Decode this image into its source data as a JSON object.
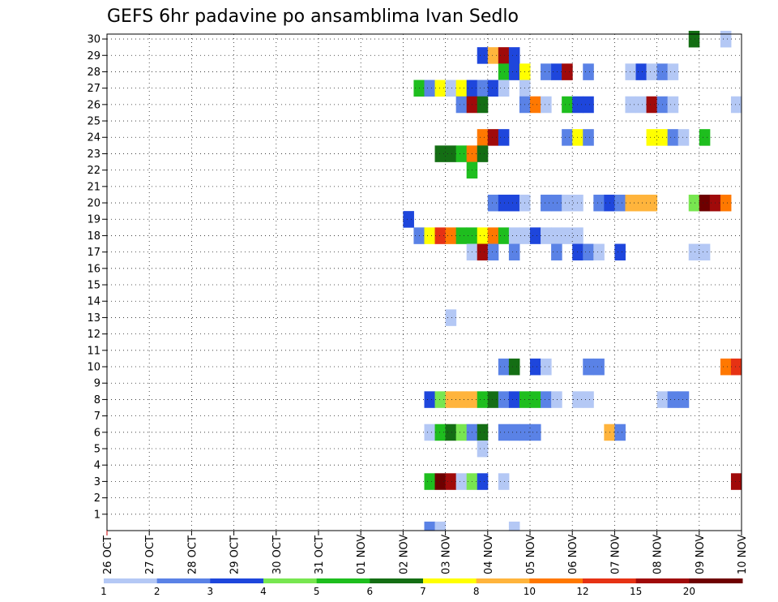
{
  "chart_data": {
    "type": "heatmap",
    "title": "GEFS 6hr padavine po ansamblima Ivan Sedlo",
    "x_tick_labels": [
      "26 OCT",
      "27 OCT",
      "28 OCT",
      "29 OCT",
      "30 OCT",
      "31 OCT",
      "01 NOV",
      "02 NOV",
      "03 NOV",
      "04 NOV",
      "05 NOV",
      "06 NOV",
      "07 NOV",
      "08 NOV",
      "09 NOV",
      "10 NOV"
    ],
    "y_tick_labels": [
      "1",
      "2",
      "3",
      "4",
      "5",
      "6",
      "7",
      "8",
      "9",
      "10",
      "11",
      "12",
      "13",
      "14",
      "15",
      "16",
      "17",
      "18",
      "19",
      "20",
      "21",
      "22",
      "23",
      "24",
      "25",
      "26",
      "27",
      "28",
      "29",
      "30"
    ],
    "y_range": [
      0,
      30
    ],
    "x_range_steps": [
      0,
      60
    ],
    "grid": true,
    "legend": {
      "position": "bottom",
      "labels": [
        "1",
        "2",
        "3",
        "4",
        "5",
        "6",
        "7",
        "8",
        "10",
        "12",
        "15",
        "20"
      ],
      "colors": [
        "#b4c8f5",
        "#5a82e6",
        "#1e46dc",
        "#78e650",
        "#1ebe1e",
        "#146e14",
        "#ffff00",
        "#ffb43c",
        "#ff7800",
        "#e63214",
        "#a00a0a",
        "#6e0000"
      ]
    },
    "cell_units": "6-hour steps after 26 OCT 00Z",
    "cells": [
      {
        "m": 30,
        "s": 56,
        "c": 6
      },
      {
        "m": 30,
        "s": 59,
        "c": 1
      },
      {
        "m": 29,
        "s": 36,
        "c": 3
      },
      {
        "m": 29,
        "s": 37,
        "c": 8
      },
      {
        "m": 29,
        "s": 38,
        "c": 11
      },
      {
        "m": 29,
        "s": 39,
        "c": 3
      },
      {
        "m": 28,
        "s": 38,
        "c": 5
      },
      {
        "m": 28,
        "s": 39,
        "c": 3
      },
      {
        "m": 28,
        "s": 40,
        "c": 7
      },
      {
        "m": 28,
        "s": 42,
        "c": 2
      },
      {
        "m": 28,
        "s": 43,
        "c": 3
      },
      {
        "m": 28,
        "s": 44,
        "c": 11
      },
      {
        "m": 28,
        "s": 46,
        "c": 2
      },
      {
        "m": 28,
        "s": 50,
        "c": 1
      },
      {
        "m": 28,
        "s": 51,
        "c": 3
      },
      {
        "m": 28,
        "s": 52,
        "c": 1
      },
      {
        "m": 28,
        "s": 53,
        "c": 2
      },
      {
        "m": 28,
        "s": 54,
        "c": 1
      },
      {
        "m": 27,
        "s": 30,
        "c": 5
      },
      {
        "m": 27,
        "s": 31,
        "c": 2
      },
      {
        "m": 27,
        "s": 32,
        "c": 7
      },
      {
        "m": 27,
        "s": 33,
        "c": 1
      },
      {
        "m": 27,
        "s": 34,
        "c": 7
      },
      {
        "m": 27,
        "s": 35,
        "c": 3
      },
      {
        "m": 27,
        "s": 36,
        "c": 2
      },
      {
        "m": 27,
        "s": 37,
        "c": 3
      },
      {
        "m": 27,
        "s": 38,
        "c": 1
      },
      {
        "m": 27,
        "s": 40,
        "c": 1
      },
      {
        "m": 26,
        "s": 34,
        "c": 2
      },
      {
        "m": 26,
        "s": 35,
        "c": 11
      },
      {
        "m": 26,
        "s": 36,
        "c": 6
      },
      {
        "m": 26,
        "s": 40,
        "c": 2
      },
      {
        "m": 26,
        "s": 41,
        "c": 9
      },
      {
        "m": 26,
        "s": 42,
        "c": 1
      },
      {
        "m": 26,
        "s": 44,
        "c": 5
      },
      {
        "m": 26,
        "s": 45,
        "c": 3
      },
      {
        "m": 26,
        "s": 46,
        "c": 3
      },
      {
        "m": 26,
        "s": 50,
        "c": 1
      },
      {
        "m": 26,
        "s": 51,
        "c": 1
      },
      {
        "m": 26,
        "s": 52,
        "c": 11
      },
      {
        "m": 26,
        "s": 53,
        "c": 2
      },
      {
        "m": 26,
        "s": 54,
        "c": 1
      },
      {
        "m": 26,
        "s": 60,
        "c": 1
      },
      {
        "m": 24,
        "s": 36,
        "c": 9
      },
      {
        "m": 24,
        "s": 37,
        "c": 11
      },
      {
        "m": 24,
        "s": 38,
        "c": 3
      },
      {
        "m": 24,
        "s": 44,
        "c": 2
      },
      {
        "m": 24,
        "s": 45,
        "c": 7
      },
      {
        "m": 24,
        "s": 46,
        "c": 2
      },
      {
        "m": 24,
        "s": 52,
        "c": 7
      },
      {
        "m": 24,
        "s": 53,
        "c": 7
      },
      {
        "m": 24,
        "s": 54,
        "c": 2
      },
      {
        "m": 24,
        "s": 55,
        "c": 1
      },
      {
        "m": 24,
        "s": 57,
        "c": 5
      },
      {
        "m": 23,
        "s": 32,
        "c": 6
      },
      {
        "m": 23,
        "s": 33,
        "c": 6
      },
      {
        "m": 23,
        "s": 34,
        "c": 5
      },
      {
        "m": 23,
        "s": 35,
        "c": 9
      },
      {
        "m": 23,
        "s": 36,
        "c": 6
      },
      {
        "m": 22,
        "s": 35,
        "c": 5
      },
      {
        "m": 20,
        "s": 37,
        "c": 2
      },
      {
        "m": 20,
        "s": 38,
        "c": 3
      },
      {
        "m": 20,
        "s": 39,
        "c": 3
      },
      {
        "m": 20,
        "s": 40,
        "c": 1
      },
      {
        "m": 20,
        "s": 42,
        "c": 2
      },
      {
        "m": 20,
        "s": 43,
        "c": 2
      },
      {
        "m": 20,
        "s": 44,
        "c": 1
      },
      {
        "m": 20,
        "s": 45,
        "c": 1
      },
      {
        "m": 20,
        "s": 47,
        "c": 2
      },
      {
        "m": 20,
        "s": 48,
        "c": 3
      },
      {
        "m": 20,
        "s": 49,
        "c": 2
      },
      {
        "m": 20,
        "s": 50,
        "c": 8
      },
      {
        "m": 20,
        "s": 51,
        "c": 8
      },
      {
        "m": 20,
        "s": 52,
        "c": 8
      },
      {
        "m": 20,
        "s": 56,
        "c": 4
      },
      {
        "m": 20,
        "s": 57,
        "c": 12
      },
      {
        "m": 20,
        "s": 58,
        "c": 11
      },
      {
        "m": 20,
        "s": 59,
        "c": 9
      },
      {
        "m": 19,
        "s": 29,
        "c": 3
      },
      {
        "m": 18,
        "s": 30,
        "c": 2
      },
      {
        "m": 18,
        "s": 31,
        "c": 7
      },
      {
        "m": 18,
        "s": 32,
        "c": 10
      },
      {
        "m": 18,
        "s": 33,
        "c": 9
      },
      {
        "m": 18,
        "s": 34,
        "c": 5
      },
      {
        "m": 18,
        "s": 35,
        "c": 5
      },
      {
        "m": 18,
        "s": 36,
        "c": 7
      },
      {
        "m": 18,
        "s": 37,
        "c": 9
      },
      {
        "m": 18,
        "s": 38,
        "c": 5
      },
      {
        "m": 18,
        "s": 39,
        "c": 1
      },
      {
        "m": 18,
        "s": 40,
        "c": 1
      },
      {
        "m": 18,
        "s": 41,
        "c": 3
      },
      {
        "m": 18,
        "s": 42,
        "c": 1
      },
      {
        "m": 18,
        "s": 43,
        "c": 1
      },
      {
        "m": 18,
        "s": 44,
        "c": 1
      },
      {
        "m": 18,
        "s": 45,
        "c": 1
      },
      {
        "m": 17,
        "s": 35,
        "c": 1
      },
      {
        "m": 17,
        "s": 36,
        "c": 11
      },
      {
        "m": 17,
        "s": 37,
        "c": 2
      },
      {
        "m": 17,
        "s": 39,
        "c": 2
      },
      {
        "m": 17,
        "s": 43,
        "c": 2
      },
      {
        "m": 17,
        "s": 45,
        "c": 3
      },
      {
        "m": 17,
        "s": 46,
        "c": 2
      },
      {
        "m": 17,
        "s": 47,
        "c": 1
      },
      {
        "m": 17,
        "s": 49,
        "c": 3
      },
      {
        "m": 17,
        "s": 56,
        "c": 1
      },
      {
        "m": 17,
        "s": 57,
        "c": 1
      },
      {
        "m": 13,
        "s": 33,
        "c": 1
      },
      {
        "m": 10,
        "s": 38,
        "c": 2
      },
      {
        "m": 10,
        "s": 39,
        "c": 6
      },
      {
        "m": 10,
        "s": 41,
        "c": 3
      },
      {
        "m": 10,
        "s": 42,
        "c": 1
      },
      {
        "m": 10,
        "s": 46,
        "c": 2
      },
      {
        "m": 10,
        "s": 47,
        "c": 2
      },
      {
        "m": 10,
        "s": 59,
        "c": 9
      },
      {
        "m": 10,
        "s": 60,
        "c": 10
      },
      {
        "m": 8,
        "s": 31,
        "c": 3
      },
      {
        "m": 8,
        "s": 32,
        "c": 4
      },
      {
        "m": 8,
        "s": 33,
        "c": 8
      },
      {
        "m": 8,
        "s": 34,
        "c": 8
      },
      {
        "m": 8,
        "s": 35,
        "c": 8
      },
      {
        "m": 8,
        "s": 36,
        "c": 5
      },
      {
        "m": 8,
        "s": 37,
        "c": 6
      },
      {
        "m": 8,
        "s": 38,
        "c": 2
      },
      {
        "m": 8,
        "s": 39,
        "c": 3
      },
      {
        "m": 8,
        "s": 40,
        "c": 5
      },
      {
        "m": 8,
        "s": 41,
        "c": 5
      },
      {
        "m": 8,
        "s": 42,
        "c": 2
      },
      {
        "m": 8,
        "s": 43,
        "c": 1
      },
      {
        "m": 8,
        "s": 45,
        "c": 1
      },
      {
        "m": 8,
        "s": 46,
        "c": 1
      },
      {
        "m": 8,
        "s": 53,
        "c": 1
      },
      {
        "m": 8,
        "s": 54,
        "c": 2
      },
      {
        "m": 8,
        "s": 55,
        "c": 2
      },
      {
        "m": 6,
        "s": 31,
        "c": 1
      },
      {
        "m": 6,
        "s": 32,
        "c": 5
      },
      {
        "m": 6,
        "s": 33,
        "c": 6
      },
      {
        "m": 6,
        "s": 34,
        "c": 4
      },
      {
        "m": 6,
        "s": 35,
        "c": 2
      },
      {
        "m": 6,
        "s": 36,
        "c": 6
      },
      {
        "m": 6,
        "s": 38,
        "c": 2
      },
      {
        "m": 6,
        "s": 39,
        "c": 2
      },
      {
        "m": 6,
        "s": 40,
        "c": 2
      },
      {
        "m": 6,
        "s": 41,
        "c": 2
      },
      {
        "m": 6,
        "s": 48,
        "c": 8
      },
      {
        "m": 6,
        "s": 49,
        "c": 2
      },
      {
        "m": 5,
        "s": 36,
        "c": 1
      },
      {
        "m": 3,
        "s": 31,
        "c": 5
      },
      {
        "m": 3,
        "s": 32,
        "c": 12
      },
      {
        "m": 3,
        "s": 33,
        "c": 11
      },
      {
        "m": 3,
        "s": 34,
        "c": 1
      },
      {
        "m": 3,
        "s": 35,
        "c": 4
      },
      {
        "m": 3,
        "s": 36,
        "c": 3
      },
      {
        "m": 3,
        "s": 38,
        "c": 1
      },
      {
        "m": 3,
        "s": 60,
        "c": 11
      },
      {
        "m": 0,
        "s": 31,
        "c": 2
      },
      {
        "m": 0,
        "s": 32,
        "c": 1
      },
      {
        "m": 0,
        "s": 39,
        "c": 1
      }
    ]
  }
}
